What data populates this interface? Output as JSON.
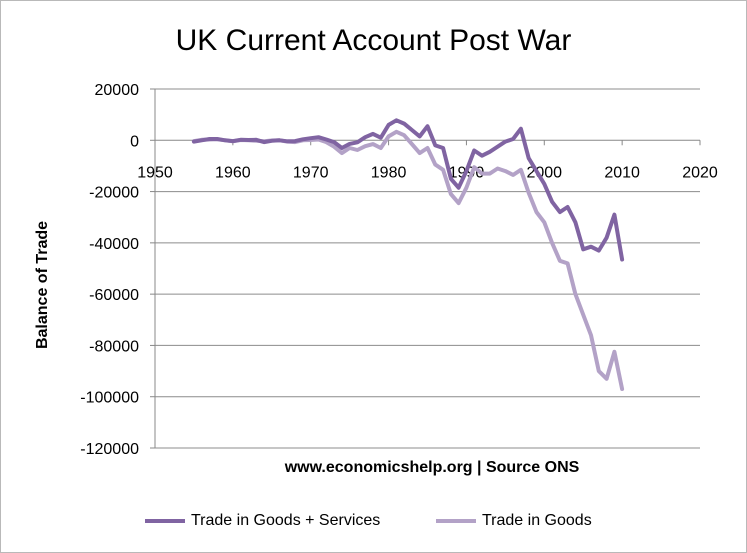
{
  "chart_data": {
    "type": "line",
    "title": "UK Current Account Post War",
    "xlabel": "www.economicshelp.org | Source ONS",
    "ylabel": "Balance of Trade",
    "xlim": [
      1950,
      2020
    ],
    "ylim": [
      -120000,
      20000
    ],
    "xticks": [
      1950,
      1960,
      1970,
      1980,
      1990,
      2000,
      2010,
      2020
    ],
    "yticks": [
      20000,
      0,
      -20000,
      -40000,
      -60000,
      -80000,
      -100000,
      -120000
    ],
    "grid": "horizontal",
    "legend_position": "bottom",
    "series": [
      {
        "name": "Trade in Goods + Services",
        "color": "#8064a2",
        "points": [
          [
            1955,
            -500
          ],
          [
            1956,
            0
          ],
          [
            1957,
            500
          ],
          [
            1958,
            500
          ],
          [
            1959,
            0
          ],
          [
            1960,
            -300
          ],
          [
            1961,
            200
          ],
          [
            1962,
            100
          ],
          [
            1963,
            200
          ],
          [
            1964,
            -700
          ],
          [
            1965,
            -200
          ],
          [
            1966,
            0
          ],
          [
            1967,
            -400
          ],
          [
            1968,
            -300
          ],
          [
            1969,
            400
          ],
          [
            1970,
            800
          ],
          [
            1971,
            1200
          ],
          [
            1972,
            300
          ],
          [
            1973,
            -700
          ],
          [
            1974,
            -3000
          ],
          [
            1975,
            -1400
          ],
          [
            1976,
            -800
          ],
          [
            1977,
            1200
          ],
          [
            1978,
            2500
          ],
          [
            1979,
            1000
          ],
          [
            1980,
            6000
          ],
          [
            1981,
            7800
          ],
          [
            1982,
            6500
          ],
          [
            1983,
            4000
          ],
          [
            1984,
            1500
          ],
          [
            1985,
            5500
          ],
          [
            1986,
            -2000
          ],
          [
            1987,
            -3000
          ],
          [
            1988,
            -15000
          ],
          [
            1989,
            -18500
          ],
          [
            1990,
            -12000
          ],
          [
            1991,
            -4000
          ],
          [
            1992,
            -6000
          ],
          [
            1993,
            -4500
          ],
          [
            1994,
            -2500
          ],
          [
            1995,
            -500
          ],
          [
            1996,
            500
          ],
          [
            1997,
            4500
          ],
          [
            1998,
            -7000
          ],
          [
            1999,
            -12000
          ],
          [
            2000,
            -17000
          ],
          [
            2001,
            -24000
          ],
          [
            2002,
            -28000
          ],
          [
            2003,
            -26000
          ],
          [
            2004,
            -32000
          ],
          [
            2005,
            -42500
          ],
          [
            2006,
            -41500
          ],
          [
            2007,
            -43000
          ],
          [
            2008,
            -38000
          ],
          [
            2009,
            -29000
          ],
          [
            2010,
            -46500
          ]
        ]
      },
      {
        "name": "Trade in Goods",
        "color": "#b3a2c7",
        "points": [
          [
            1955,
            -300
          ],
          [
            1956,
            200
          ],
          [
            1957,
            300
          ],
          [
            1958,
            400
          ],
          [
            1959,
            0
          ],
          [
            1960,
            -400
          ],
          [
            1961,
            100
          ],
          [
            1962,
            0
          ],
          [
            1963,
            -200
          ],
          [
            1964,
            -400
          ],
          [
            1965,
            -100
          ],
          [
            1966,
            0
          ],
          [
            1967,
            -500
          ],
          [
            1968,
            -700
          ],
          [
            1969,
            0
          ],
          [
            1970,
            100
          ],
          [
            1971,
            300
          ],
          [
            1972,
            -700
          ],
          [
            1973,
            -2500
          ],
          [
            1974,
            -5000
          ],
          [
            1975,
            -3000
          ],
          [
            1976,
            -3800
          ],
          [
            1977,
            -2300
          ],
          [
            1978,
            -1500
          ],
          [
            1979,
            -3000
          ],
          [
            1980,
            1500
          ],
          [
            1981,
            3300
          ],
          [
            1982,
            2000
          ],
          [
            1983,
            -1500
          ],
          [
            1984,
            -5000
          ],
          [
            1985,
            -3000
          ],
          [
            1986,
            -9500
          ],
          [
            1987,
            -11500
          ],
          [
            1988,
            -21000
          ],
          [
            1989,
            -24500
          ],
          [
            1990,
            -18500
          ],
          [
            1991,
            -10500
          ],
          [
            1992,
            -13000
          ],
          [
            1993,
            -13000
          ],
          [
            1994,
            -11000
          ],
          [
            1995,
            -12000
          ],
          [
            1996,
            -13500
          ],
          [
            1997,
            -11500
          ],
          [
            1998,
            -20500
          ],
          [
            1999,
            -28000
          ],
          [
            2000,
            -32000
          ],
          [
            2001,
            -40000
          ],
          [
            2002,
            -47000
          ],
          [
            2003,
            -48000
          ],
          [
            2004,
            -60000
          ],
          [
            2005,
            -68000
          ],
          [
            2006,
            -76000
          ],
          [
            2007,
            -90000
          ],
          [
            2008,
            -93000
          ],
          [
            2009,
            -82500
          ],
          [
            2010,
            -97000
          ]
        ]
      }
    ]
  }
}
